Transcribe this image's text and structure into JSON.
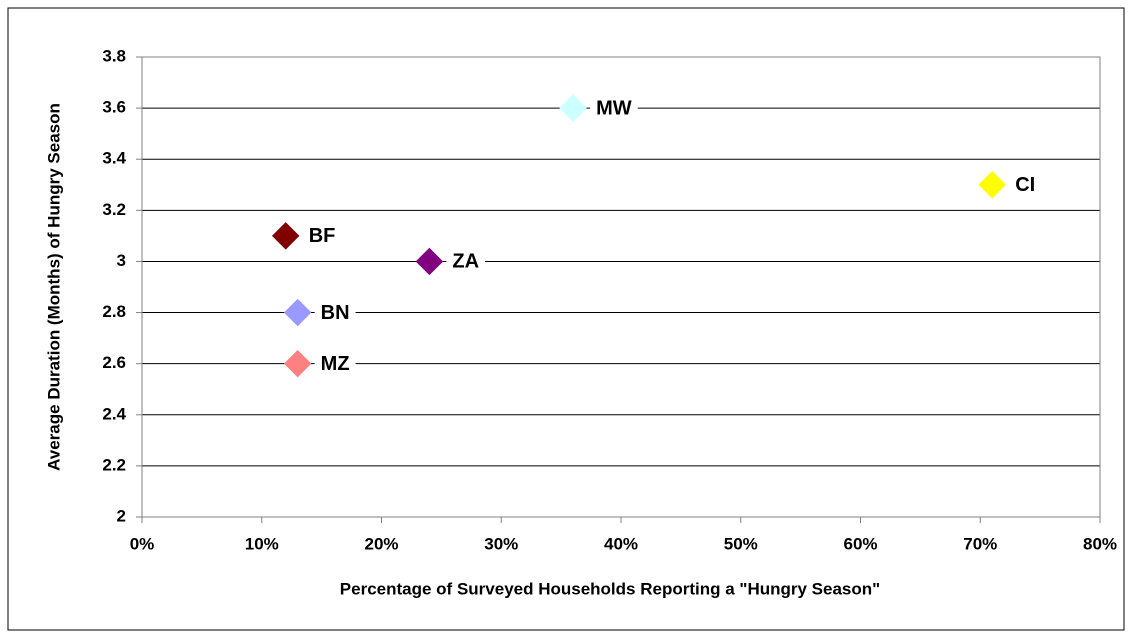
{
  "chart_data": {
    "type": "scatter",
    "xlabel": "Percentage of Surveyed Households Reporting a \"Hungry Season\"",
    "ylabel": "Average Duration (Months) of Hungry Season",
    "series": [
      {
        "name": "MW",
        "color": "#ccffff",
        "x": [
          36
        ],
        "values": [
          3.6
        ]
      },
      {
        "name": "CI",
        "color": "#ffff00",
        "x": [
          71
        ],
        "values": [
          3.3
        ]
      },
      {
        "name": "BF",
        "color": "#800000",
        "x": [
          12
        ],
        "values": [
          3.1
        ]
      },
      {
        "name": "ZA",
        "color": "#800080",
        "x": [
          24
        ],
        "values": [
          3.0
        ]
      },
      {
        "name": "BN",
        "color": "#9999ff",
        "x": [
          13
        ],
        "values": [
          2.8
        ]
      },
      {
        "name": "MZ",
        "color": "#ff8080",
        "x": [
          13
        ],
        "values": [
          2.6
        ]
      }
    ],
    "xlim": [
      0,
      80
    ],
    "xticks": [
      {
        "value": 0,
        "label": "0%"
      },
      {
        "value": 10,
        "label": "10%"
      },
      {
        "value": 20,
        "label": "20%"
      },
      {
        "value": 30,
        "label": "30%"
      },
      {
        "value": 40,
        "label": "40%"
      },
      {
        "value": 50,
        "label": "50%"
      },
      {
        "value": 60,
        "label": "60%"
      },
      {
        "value": 70,
        "label": "70%"
      },
      {
        "value": 80,
        "label": "80%"
      }
    ],
    "ylim": [
      2,
      3.8
    ],
    "yticks": [
      2,
      2.2,
      2.4,
      2.6,
      2.8,
      3,
      3.2,
      3.4,
      3.6,
      3.8
    ],
    "grid": true
  }
}
